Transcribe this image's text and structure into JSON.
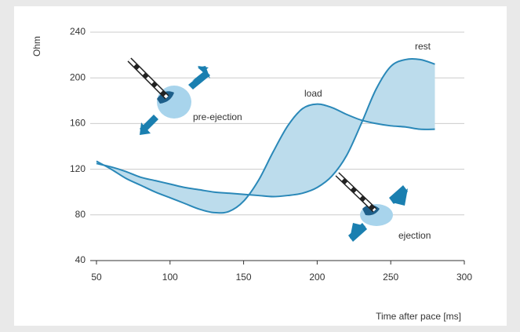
{
  "chart_data": {
    "type": "line",
    "y_label": "Ohm",
    "x_label": "Time after pace [ms]",
    "annotations": [
      "rest",
      "load",
      "pre-ejection",
      "ejection"
    ],
    "x": [
      50,
      60,
      70,
      80,
      90,
      100,
      110,
      120,
      130,
      140,
      150,
      160,
      170,
      180,
      190,
      200,
      210,
      220,
      230,
      240,
      250,
      260,
      270,
      280
    ],
    "series": [
      {
        "name": "load",
        "color": "#2a88b8",
        "values": [
          127,
          120,
          112,
          106,
          100,
          95,
          90,
          85,
          82,
          83,
          92,
          110,
          135,
          158,
          173,
          177,
          174,
          168,
          163,
          160,
          158,
          157,
          155,
          155
        ]
      },
      {
        "name": "rest",
        "color": "#2a88b8",
        "values": [
          125,
          122,
          118,
          113,
          110,
          107,
          104,
          102,
          100,
          99,
          98,
          97,
          96,
          97,
          99,
          104,
          114,
          132,
          160,
          190,
          210,
          216,
          216,
          212
        ]
      }
    ],
    "fill_between": "#bcdcec",
    "xlim": [
      50,
      300
    ],
    "xticks": [
      50,
      100,
      150,
      200,
      250,
      300
    ],
    "ylim": [
      40,
      240
    ],
    "yticks": [
      40,
      80,
      120,
      160,
      200,
      240
    ],
    "grid": true
  }
}
